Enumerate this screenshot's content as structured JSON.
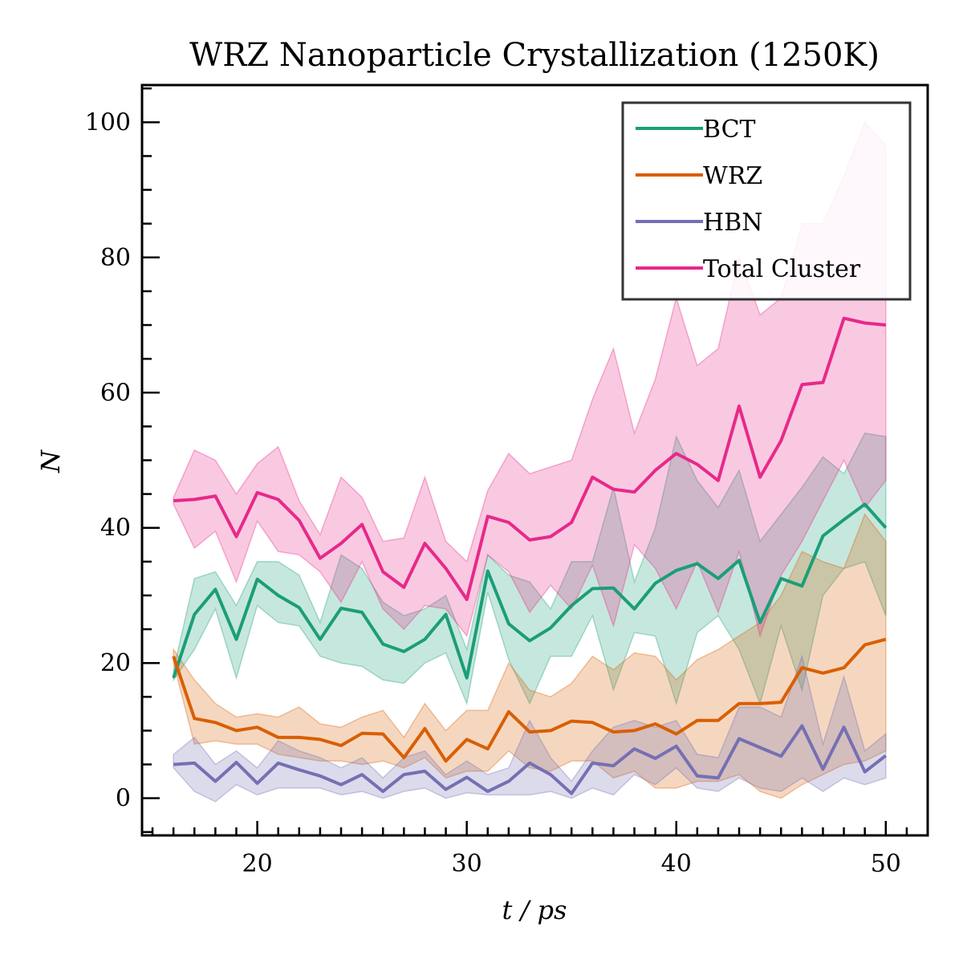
{
  "chart_data": {
    "type": "line",
    "title": "WRZ Nanoparticle Crystallization (1250K)",
    "xlabel": "t / ps",
    "ylabel": "N",
    "xlim": [
      14.5,
      52
    ],
    "ylim": [
      -5.5,
      105.5
    ],
    "xticks": [
      20,
      30,
      40,
      50
    ],
    "yticks": [
      0,
      20,
      40,
      60,
      80,
      100
    ],
    "grid": false,
    "legend_position": "top-right",
    "x": [
      16,
      17,
      18,
      19,
      20,
      21,
      22,
      23,
      24,
      25,
      26,
      27,
      28,
      29,
      30,
      31,
      32,
      33,
      34,
      35,
      36,
      37,
      38,
      39,
      40,
      41,
      42,
      43,
      44,
      45,
      46,
      47,
      48,
      49,
      50
    ],
    "series": [
      {
        "name": "BCT",
        "color": "#1b9e77",
        "values": [
          17.8,
          27.2,
          30.9,
          23.5,
          32.4,
          30.0,
          28.2,
          23.5,
          28.1,
          27.5,
          22.8,
          21.7,
          23.5,
          27.2,
          17.8,
          33.6,
          25.8,
          23.3,
          25.2,
          28.5,
          31.0,
          31.1,
          28.0,
          31.8,
          33.7,
          34.7,
          32.5,
          35.2,
          26.0,
          32.5,
          31.4,
          38.8,
          41.2,
          43.5,
          40.0
        ],
        "lower": [
          17.5,
          22.0,
          28.0,
          17.8,
          28.5,
          26.0,
          25.5,
          21.0,
          20.0,
          19.5,
          17.5,
          17.0,
          20.0,
          21.5,
          14.0,
          30.5,
          20.5,
          14.0,
          21.0,
          21.0,
          27.0,
          16.0,
          24.5,
          24.0,
          14.0,
          24.5,
          27.0,
          22.0,
          14.0,
          25.5,
          16.0,
          30.0,
          34.0,
          35.0,
          27.0
        ],
        "upper": [
          19.0,
          32.5,
          33.5,
          28.5,
          35.0,
          35.0,
          33.0,
          26.0,
          36.0,
          34.0,
          29.0,
          27.0,
          28.0,
          30.0,
          22.0,
          36.0,
          33.0,
          32.0,
          28.0,
          35.0,
          35.0,
          46.0,
          32.0,
          40.0,
          53.5,
          47.0,
          43.0,
          48.5,
          38.0,
          42.0,
          46.0,
          50.5,
          48.0,
          54.0,
          53.5
        ]
      },
      {
        "name": "WRZ",
        "color": "#d95f02",
        "values": [
          21.0,
          11.8,
          11.2,
          10.0,
          10.5,
          9.0,
          9.0,
          8.7,
          7.8,
          9.6,
          9.5,
          6.0,
          10.3,
          5.5,
          8.7,
          7.3,
          12.8,
          9.8,
          10.0,
          11.4,
          11.2,
          9.8,
          10.0,
          11.0,
          9.5,
          11.5,
          11.5,
          14.0,
          14.0,
          14.2,
          19.3,
          18.5,
          19.3,
          22.7,
          23.5
        ],
        "lower": [
          20.0,
          8.0,
          8.5,
          8.0,
          8.0,
          6.5,
          6.0,
          5.5,
          5.5,
          5.0,
          5.5,
          4.5,
          6.0,
          3.0,
          4.0,
          4.0,
          7.0,
          4.5,
          4.0,
          5.5,
          5.5,
          3.0,
          4.0,
          1.5,
          1.5,
          2.5,
          2.5,
          3.5,
          1.0,
          0.0,
          2.0,
          3.5,
          5.0,
          5.5,
          7.0
        ],
        "upper": [
          22.0,
          17.5,
          14.0,
          12.0,
          12.5,
          12.0,
          13.5,
          11.0,
          10.5,
          12.0,
          13.0,
          9.0,
          14.0,
          10.0,
          13.0,
          13.0,
          20.0,
          16.0,
          15.0,
          17.0,
          21.0,
          19.0,
          21.5,
          21.0,
          17.5,
          20.5,
          22.0,
          24.0,
          26.0,
          30.0,
          36.5,
          35.0,
          34.0,
          42.0,
          38.0
        ]
      },
      {
        "name": "HBN",
        "color": "#7570b3",
        "values": [
          5.0,
          5.2,
          2.5,
          5.3,
          2.2,
          5.2,
          4.2,
          3.3,
          2.0,
          3.5,
          1.0,
          3.5,
          4.0,
          1.3,
          3.1,
          1.0,
          2.5,
          5.2,
          3.5,
          0.7,
          5.2,
          4.8,
          7.3,
          5.9,
          7.7,
          3.3,
          3.0,
          8.8,
          7.5,
          6.2,
          10.7,
          4.3,
          10.5,
          3.9,
          6.3
        ],
        "lower": [
          4.5,
          1.0,
          -0.5,
          2.0,
          0.5,
          1.5,
          1.5,
          1.5,
          0.5,
          1.0,
          0.0,
          1.0,
          1.5,
          0.0,
          0.8,
          0.5,
          0.5,
          0.5,
          1.0,
          0.0,
          1.5,
          0.5,
          3.5,
          2.0,
          4.5,
          1.5,
          1.0,
          3.0,
          1.5,
          1.0,
          3.0,
          1.0,
          3.0,
          2.0,
          3.0
        ],
        "upper": [
          6.5,
          9.0,
          5.0,
          7.0,
          4.5,
          8.5,
          7.0,
          6.0,
          4.5,
          6.0,
          3.0,
          6.0,
          7.0,
          3.5,
          5.5,
          3.5,
          4.5,
          11.5,
          6.0,
          2.5,
          7.0,
          10.5,
          11.5,
          10.5,
          11.5,
          6.5,
          6.0,
          13.5,
          13.5,
          12.0,
          21.0,
          8.0,
          18.0,
          7.0,
          9.5
        ]
      },
      {
        "name": "Total Cluster",
        "color": "#e7298a",
        "values": [
          44.0,
          44.2,
          44.7,
          38.7,
          45.2,
          44.2,
          41.1,
          35.5,
          37.7,
          40.5,
          33.5,
          31.2,
          37.7,
          34.0,
          29.4,
          41.7,
          40.8,
          38.2,
          38.7,
          40.8,
          47.5,
          45.7,
          45.3,
          48.5,
          51.0,
          49.4,
          47.0,
          58.0,
          47.5,
          52.9,
          61.2,
          61.5,
          71.0,
          70.3,
          70.0
        ],
        "lower": [
          43.5,
          37.0,
          39.5,
          32.0,
          41.0,
          36.5,
          36.0,
          33.5,
          29.0,
          35.0,
          28.0,
          25.0,
          28.5,
          28.0,
          24.0,
          36.0,
          33.5,
          27.5,
          31.5,
          28.0,
          34.5,
          25.5,
          37.5,
          34.0,
          28.0,
          35.0,
          27.5,
          36.5,
          24.0,
          33.0,
          38.0,
          44.0,
          50.0,
          43.0,
          47.0
        ],
        "upper": [
          44.5,
          51.5,
          50.0,
          45.0,
          49.5,
          52.0,
          44.0,
          39.0,
          47.5,
          44.5,
          38.0,
          38.5,
          47.5,
          38.0,
          35.0,
          45.5,
          51.0,
          48.0,
          49.0,
          50.0,
          59.0,
          66.5,
          54.0,
          62.0,
          74.0,
          64.0,
          66.5,
          80.0,
          71.5,
          74.0,
          85.0,
          85.0,
          92.0,
          100.0,
          96.5
        ]
      }
    ]
  }
}
